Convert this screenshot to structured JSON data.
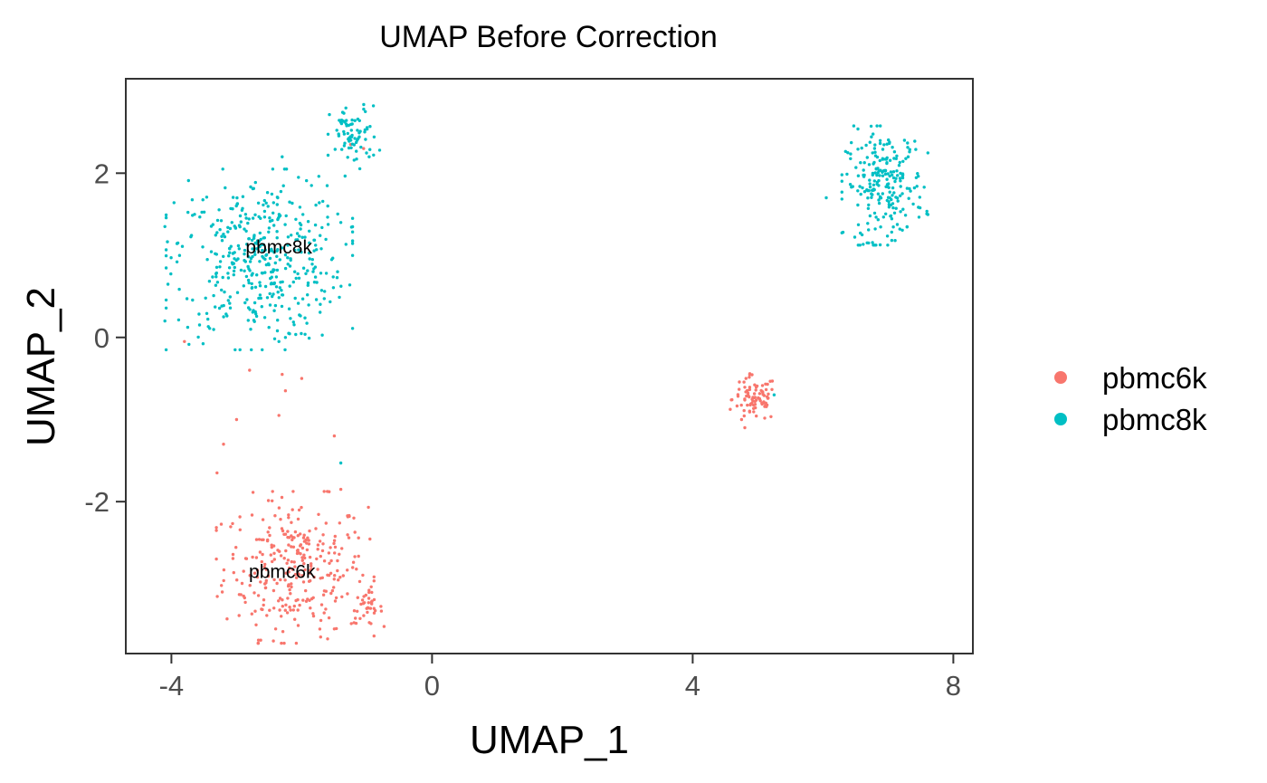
{
  "chart_data": {
    "type": "scatter",
    "title": "UMAP Before Correction",
    "xlabel": "UMAP_1",
    "ylabel": "UMAP_2",
    "xlim": [
      -4.7,
      8.3
    ],
    "ylim": [
      -3.85,
      3.15
    ],
    "xticks": [
      "-4",
      "0",
      "4",
      "8"
    ],
    "xtick_values": [
      -4,
      0,
      4,
      8
    ],
    "yticks": [
      "-2",
      "0",
      "2"
    ],
    "ytick_values": [
      -2,
      0,
      2
    ],
    "grid": false,
    "legend_position": "right",
    "cluster_labels": [
      {
        "text": "pbmc8k",
        "x": -2.35,
        "y": 1.1
      },
      {
        "text": "pbmc6k",
        "x": -2.3,
        "y": -2.85
      }
    ],
    "series": [
      {
        "name": "pbmc6k",
        "color": "#F8766D",
        "clusters": [
          {
            "cx": -2.1,
            "cy": -2.8,
            "sx": 0.55,
            "sy": 0.42,
            "n": 300
          },
          {
            "cx": -1.0,
            "cy": -3.3,
            "sx": 0.12,
            "sy": 0.1,
            "n": 35
          },
          {
            "cx": 4.95,
            "cy": -0.75,
            "sx": 0.17,
            "sy": 0.14,
            "n": 85
          }
        ],
        "points": [
          [
            -3.8,
            -0.05
          ],
          [
            -2.8,
            -0.4
          ],
          [
            -2.0,
            -0.5
          ],
          [
            -2.3,
            -0.45
          ],
          [
            -2.25,
            -0.65
          ],
          [
            -3.0,
            -1.0
          ],
          [
            -2.35,
            -0.95
          ],
          [
            -1.5,
            -1.2
          ],
          [
            -3.2,
            -1.3
          ],
          [
            -3.3,
            -1.65
          ],
          [
            -1.4,
            -1.85
          ],
          [
            -1.25,
            2.35
          ],
          [
            -1.05,
            2.3
          ],
          [
            -2.7,
            -3.5
          ],
          [
            -2.4,
            -3.55
          ],
          [
            -1.5,
            -3.55
          ],
          [
            4.8,
            -1.1
          ],
          [
            4.75,
            -1.0
          ]
        ]
      },
      {
        "name": "pbmc8k",
        "color": "#00BFC4",
        "clusters": [
          {
            "cx": -2.65,
            "cy": 0.95,
            "sx": 0.65,
            "sy": 0.5,
            "n": 430
          },
          {
            "cx": -1.2,
            "cy": 2.45,
            "sx": 0.18,
            "sy": 0.18,
            "n": 75
          },
          {
            "cx": 6.95,
            "cy": 1.85,
            "sx": 0.3,
            "sy": 0.33,
            "n": 235
          }
        ],
        "points": [
          [
            -4.1,
            0.2
          ],
          [
            -4.1,
            1.35
          ],
          [
            -3.9,
            1.15
          ],
          [
            -2.3,
            2.2
          ],
          [
            -2.05,
            1.95
          ],
          [
            -1.85,
            1.85
          ],
          [
            -1.6,
            1.6
          ],
          [
            -1.4,
            1.4
          ],
          [
            -1.45,
            0.8
          ],
          [
            -2.35,
            -0.05
          ],
          [
            -2.25,
            0.0
          ],
          [
            -2.2,
            0.05
          ],
          [
            -1.4,
            -1.53
          ],
          [
            6.05,
            1.7
          ],
          [
            6.7,
            1.15
          ],
          [
            6.6,
            1.25
          ],
          [
            5.25,
            -0.7
          ]
        ]
      }
    ]
  }
}
